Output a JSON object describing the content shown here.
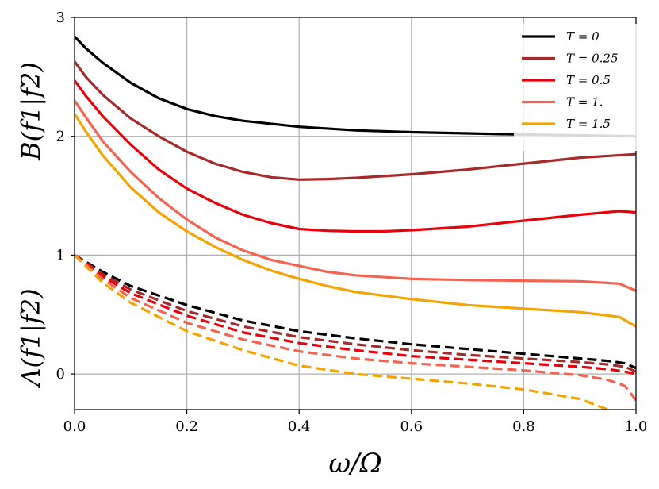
{
  "chart_data": {
    "type": "line",
    "xlabel": "ω/Ω",
    "ylabel_upper": "B(f1|f2)",
    "ylabel_lower": "Λ(f1|f2)",
    "xlim": [
      0.0,
      1.0
    ],
    "ylim": [
      -0.3,
      3.0
    ],
    "xticks": [
      "0.0",
      "0.2",
      "0.4",
      "0.6",
      "0.8",
      "1.0"
    ],
    "yticks": [
      "0",
      "1",
      "2",
      "3"
    ],
    "grid": true,
    "legend_position": "top-right",
    "series": [
      {
        "name": "T = 0",
        "color": "#000000",
        "B": {
          "x": [
            0,
            0.02,
            0.05,
            0.1,
            0.15,
            0.2,
            0.25,
            0.3,
            0.4,
            0.5,
            0.6,
            0.7,
            0.8,
            0.9,
            1.0
          ],
          "y": [
            2.84,
            2.74,
            2.62,
            2.45,
            2.32,
            2.23,
            2.17,
            2.13,
            2.08,
            2.05,
            2.035,
            2.025,
            2.015,
            2.008,
            2.0
          ]
        },
        "Lambda": {
          "x": [
            0,
            0.05,
            0.1,
            0.2,
            0.3,
            0.4,
            0.5,
            0.6,
            0.7,
            0.8,
            0.9,
            0.95,
            0.98,
            1.0
          ],
          "y": [
            1.0,
            0.86,
            0.74,
            0.58,
            0.45,
            0.36,
            0.3,
            0.25,
            0.21,
            0.17,
            0.13,
            0.11,
            0.09,
            0.05
          ]
        }
      },
      {
        "name": "T = 0.25",
        "color": "#a52a2a",
        "B": {
          "x": [
            0,
            0.02,
            0.05,
            0.1,
            0.15,
            0.2,
            0.25,
            0.3,
            0.35,
            0.4,
            0.45,
            0.5,
            0.6,
            0.7,
            0.8,
            0.9,
            1.0
          ],
          "y": [
            2.63,
            2.5,
            2.35,
            2.15,
            2.0,
            1.87,
            1.77,
            1.7,
            1.655,
            1.635,
            1.64,
            1.65,
            1.68,
            1.72,
            1.77,
            1.82,
            1.85
          ]
        },
        "Lambda": {
          "x": [
            0,
            0.05,
            0.1,
            0.2,
            0.3,
            0.4,
            0.5,
            0.6,
            0.7,
            0.8,
            0.9,
            0.95,
            0.98,
            1.0
          ],
          "y": [
            1.0,
            0.84,
            0.71,
            0.53,
            0.4,
            0.31,
            0.25,
            0.2,
            0.16,
            0.13,
            0.1,
            0.08,
            0.06,
            0.02
          ]
        }
      },
      {
        "name": "T = 0.5",
        "color": "#e8000b",
        "B": {
          "x": [
            0,
            0.02,
            0.05,
            0.1,
            0.15,
            0.2,
            0.25,
            0.3,
            0.35,
            0.4,
            0.45,
            0.5,
            0.55,
            0.6,
            0.7,
            0.8,
            0.9,
            0.97,
            1.0
          ],
          "y": [
            2.47,
            2.34,
            2.17,
            1.93,
            1.72,
            1.56,
            1.44,
            1.34,
            1.27,
            1.22,
            1.205,
            1.2,
            1.2,
            1.21,
            1.24,
            1.29,
            1.34,
            1.37,
            1.36
          ]
        },
        "Lambda": {
          "x": [
            0,
            0.05,
            0.1,
            0.2,
            0.3,
            0.4,
            0.5,
            0.6,
            0.7,
            0.8,
            0.9,
            0.95,
            0.98,
            1.0
          ],
          "y": [
            1.0,
            0.82,
            0.68,
            0.49,
            0.35,
            0.26,
            0.2,
            0.15,
            0.12,
            0.09,
            0.06,
            0.04,
            0.02,
            0.0
          ]
        }
      },
      {
        "name": "T = 1.",
        "color": "#f4634f",
        "B": {
          "x": [
            0,
            0.02,
            0.05,
            0.1,
            0.15,
            0.2,
            0.25,
            0.3,
            0.35,
            0.4,
            0.45,
            0.5,
            0.6,
            0.7,
            0.8,
            0.9,
            0.97,
            1.0
          ],
          "y": [
            2.3,
            2.16,
            1.96,
            1.7,
            1.48,
            1.3,
            1.15,
            1.04,
            0.96,
            0.91,
            0.86,
            0.83,
            0.8,
            0.79,
            0.785,
            0.78,
            0.76,
            0.7
          ]
        },
        "Lambda": {
          "x": [
            0,
            0.05,
            0.1,
            0.2,
            0.3,
            0.4,
            0.5,
            0.6,
            0.7,
            0.8,
            0.9,
            0.95,
            0.98,
            1.0
          ],
          "y": [
            1.0,
            0.8,
            0.64,
            0.43,
            0.29,
            0.19,
            0.13,
            0.09,
            0.06,
            0.03,
            -0.01,
            -0.05,
            -0.1,
            -0.22
          ]
        }
      },
      {
        "name": "T = 1.5",
        "color": "#f5a300",
        "B": {
          "x": [
            0,
            0.02,
            0.05,
            0.1,
            0.15,
            0.2,
            0.25,
            0.3,
            0.35,
            0.4,
            0.45,
            0.5,
            0.6,
            0.7,
            0.8,
            0.9,
            0.97,
            1.0
          ],
          "y": [
            2.19,
            2.04,
            1.84,
            1.57,
            1.36,
            1.2,
            1.07,
            0.96,
            0.87,
            0.8,
            0.74,
            0.69,
            0.63,
            0.58,
            0.55,
            0.52,
            0.48,
            0.4
          ]
        },
        "Lambda": {
          "x": [
            0,
            0.05,
            0.1,
            0.2,
            0.3,
            0.4,
            0.5,
            0.6,
            0.7,
            0.8,
            0.9,
            0.95
          ],
          "y": [
            1.0,
            0.77,
            0.6,
            0.36,
            0.2,
            0.07,
            0.0,
            -0.04,
            -0.08,
            -0.13,
            -0.21,
            -0.3
          ]
        }
      }
    ]
  }
}
